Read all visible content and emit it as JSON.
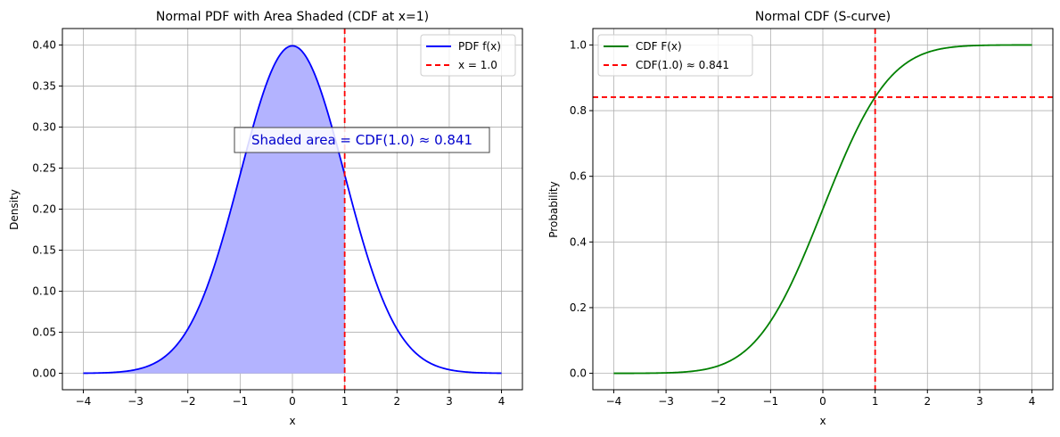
{
  "chart_data": [
    {
      "type": "line",
      "title": "Normal PDF with Area Shaded (CDF at x=1)",
      "xlabel": "x",
      "ylabel": "Density",
      "xlim": [
        -4.4,
        4.4
      ],
      "ylim": [
        -0.02,
        0.42
      ],
      "xticks": [
        -4,
        -3,
        -2,
        -1,
        0,
        1,
        2,
        3,
        4
      ],
      "xtick_labels": [
        "−4",
        "−3",
        "−2",
        "−1",
        "0",
        "1",
        "2",
        "3",
        "4"
      ],
      "yticks": [
        0.0,
        0.05,
        0.1,
        0.15,
        0.2,
        0.25,
        0.3,
        0.35,
        0.4
      ],
      "ytick_labels": [
        "0.00",
        "0.05",
        "0.10",
        "0.15",
        "0.20",
        "0.25",
        "0.30",
        "0.35",
        "0.40"
      ],
      "grid": true,
      "legend_position": "top-right",
      "series": [
        {
          "name": "PDF f(x)",
          "color": "#0000ff",
          "function": "normal_pdf",
          "x_range": [
            -4,
            4
          ]
        }
      ],
      "shaded_region": {
        "x_range": [
          -4,
          1.0
        ],
        "color": "#b3b3ff"
      },
      "vline": {
        "x": 1.0,
        "label": "x = 1.0",
        "color": "#ff0000"
      },
      "annotation": {
        "text": "Shaded area = CDF(1.0) ≈ 0.841",
        "x": 1.3,
        "y": 0.28,
        "color": "#0000cc"
      }
    },
    {
      "type": "line",
      "title": "Normal CDF (S-curve)",
      "xlabel": "x",
      "ylabel": "Probability",
      "xlim": [
        -4.4,
        4.4
      ],
      "ylim": [
        -0.05,
        1.05
      ],
      "xticks": [
        -4,
        -3,
        -2,
        -1,
        0,
        1,
        2,
        3,
        4
      ],
      "xtick_labels": [
        "−4",
        "−3",
        "−2",
        "−1",
        "0",
        "1",
        "2",
        "3",
        "4"
      ],
      "yticks": [
        0.0,
        0.2,
        0.4,
        0.6,
        0.8,
        1.0
      ],
      "ytick_labels": [
        "0.0",
        "0.2",
        "0.4",
        "0.6",
        "0.8",
        "1.0"
      ],
      "grid": true,
      "legend_position": "top-left",
      "series": [
        {
          "name": "CDF F(x)",
          "color": "#008000",
          "function": "normal_cdf",
          "x_range": [
            -4,
            4
          ]
        }
      ],
      "vline": {
        "x": 1.0,
        "color": "#ff0000"
      },
      "hline": {
        "y": 0.841,
        "label": "CDF(1.0) ≈ 0.841",
        "color": "#ff0000"
      }
    }
  ]
}
